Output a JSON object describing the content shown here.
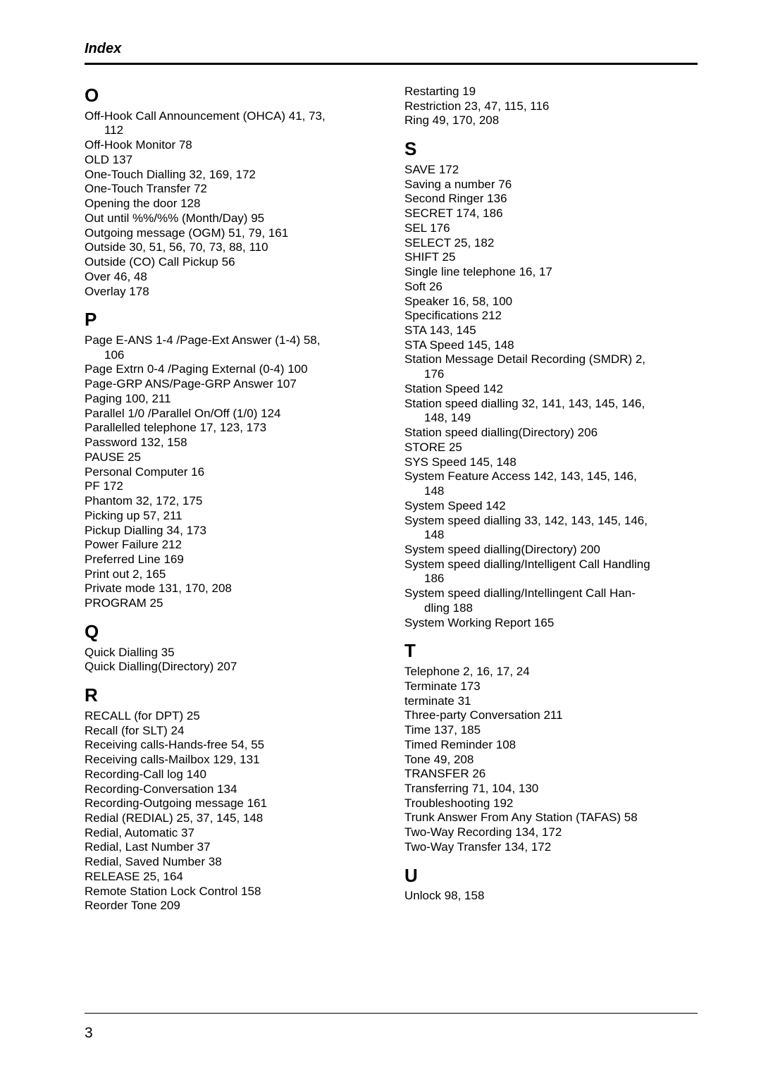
{
  "header": "Index",
  "page_number": "3",
  "left": {
    "O": {
      "letter": "O",
      "items": [
        {
          "t": "Off-Hook Call Announcement (OHCA) 41, 73,",
          "cont": "112"
        },
        {
          "t": "Off-Hook Monitor 78"
        },
        {
          "t": "OLD 137"
        },
        {
          "t": "One-Touch Dialling 32, 169, 172"
        },
        {
          "t": "One-Touch Transfer 72"
        },
        {
          "t": "Opening the door 128"
        },
        {
          "t": "Out until %%/%% (Month/Day) 95"
        },
        {
          "t": "Outgoing message (OGM) 51, 79, 161"
        },
        {
          "t": "Outside 30, 51, 56, 70, 73, 88, 110"
        },
        {
          "t": "Outside (CO) Call Pickup 56"
        },
        {
          "t": "Over 46, 48"
        },
        {
          "t": "Overlay 178"
        }
      ]
    },
    "P": {
      "letter": "P",
      "items": [
        {
          "t": "Page E-ANS 1-4 /Page-Ext Answer (1-4) 58,",
          "cont": "106"
        },
        {
          "t": "Page Extrn 0-4 /Paging External (0-4) 100"
        },
        {
          "t": "Page-GRP ANS/Page-GRP Answer 107"
        },
        {
          "t": "Paging 100, 211"
        },
        {
          "t": "Parallel 1/0 /Parallel On/Off (1/0) 124"
        },
        {
          "t": "Parallelled telephone 17, 123, 173"
        },
        {
          "t": "Password 132, 158"
        },
        {
          "t": "PAUSE 25"
        },
        {
          "t": "Personal Computer 16"
        },
        {
          "t": "PF 172"
        },
        {
          "t": "Phantom 32, 172, 175"
        },
        {
          "t": "Picking up 57, 211"
        },
        {
          "t": "Pickup Dialling 34, 173"
        },
        {
          "t": "Power Failure 212"
        },
        {
          "t": "Preferred Line 169"
        },
        {
          "t": "Print out 2, 165"
        },
        {
          "t": "Private mode 131, 170, 208"
        },
        {
          "t": "PROGRAM 25"
        }
      ]
    },
    "Q": {
      "letter": "Q",
      "items": [
        {
          "t": "Quick Dialling 35"
        },
        {
          "t": "Quick Dialling(Directory) 207"
        }
      ]
    },
    "R": {
      "letter": "R",
      "items": [
        {
          "t": "RECALL (for DPT) 25"
        },
        {
          "t": "Recall (for SLT) 24"
        },
        {
          "t": "Receiving calls-Hands-free 54, 55"
        },
        {
          "t": "Receiving calls-Mailbox 129, 131"
        },
        {
          "t": "Recording-Call log 140"
        },
        {
          "t": "Recording-Conversation 134"
        },
        {
          "t": "Recording-Outgoing message 161"
        },
        {
          "t": "Redial (REDIAL) 25, 37, 145, 148"
        },
        {
          "t": "Redial, Automatic 37"
        },
        {
          "t": "Redial, Last Number 37"
        },
        {
          "t": "Redial, Saved Number 38"
        },
        {
          "t": "RELEASE 25, 164"
        },
        {
          "t": "Remote Station Lock Control 158"
        },
        {
          "t": "Reorder Tone 209"
        }
      ]
    }
  },
  "right": {
    "pre": [
      {
        "t": "Restarting 19"
      },
      {
        "t": "Restriction 23, 47, 115, 116"
      },
      {
        "t": "Ring 49, 170, 208"
      }
    ],
    "S": {
      "letter": "S",
      "items": [
        {
          "t": "SAVE 172"
        },
        {
          "t": "Saving a number 76"
        },
        {
          "t": "Second Ringer 136"
        },
        {
          "t": "SECRET 174, 186"
        },
        {
          "t": "SEL 176"
        },
        {
          "t": "SELECT 25, 182"
        },
        {
          "t": "SHIFT 25"
        },
        {
          "t": "Single line telephone 16, 17"
        },
        {
          "t": "Soft 26"
        },
        {
          "t": "Speaker 16, 58, 100"
        },
        {
          "t": "Specifications 212"
        },
        {
          "t": "STA 143, 145"
        },
        {
          "t": "STA Speed 145, 148"
        },
        {
          "t": "Station Message Detail Recording (SMDR) 2,",
          "cont": "176"
        },
        {
          "t": "Station Speed 142"
        },
        {
          "t": "Station speed dialling 32, 141, 143, 145, 146,",
          "cont": "148, 149"
        },
        {
          "t": "Station speed dialling(Directory) 206"
        },
        {
          "t": "STORE 25"
        },
        {
          "t": "SYS Speed 145, 148"
        },
        {
          "t": "System Feature Access 142, 143, 145, 146,",
          "cont": "148"
        },
        {
          "t": "System Speed 142"
        },
        {
          "t": "System speed dialling 33, 142, 143, 145, 146,",
          "cont": "148"
        },
        {
          "t": "System speed dialling(Directory) 200"
        },
        {
          "t": "System speed dialling/Intelligent Call Handling",
          "cont": "186"
        },
        {
          "t": "System speed dialling/Intellingent Call Han-",
          "cont": "dling 188"
        },
        {
          "t": "System Working Report 165"
        }
      ]
    },
    "T": {
      "letter": "T",
      "items": [
        {
          "t": "Telephone 2, 16, 17, 24"
        },
        {
          "t": "Terminate 173"
        },
        {
          "t": "terminate 31"
        },
        {
          "t": "Three-party Conversation 211"
        },
        {
          "t": "Time 137, 185"
        },
        {
          "t": "Timed Reminder 108"
        },
        {
          "t": "Tone 49, 208"
        },
        {
          "t": "TRANSFER 26"
        },
        {
          "t": "Transferring 71, 104, 130"
        },
        {
          "t": "Troubleshooting 192"
        },
        {
          "t": "Trunk Answer From Any Station (TAFAS) 58"
        },
        {
          "t": "Two-Way Recording 134, 172"
        },
        {
          "t": "Two-Way Transfer 134, 172"
        }
      ]
    },
    "U": {
      "letter": "U",
      "items": [
        {
          "t": "Unlock 98, 158"
        }
      ]
    }
  }
}
